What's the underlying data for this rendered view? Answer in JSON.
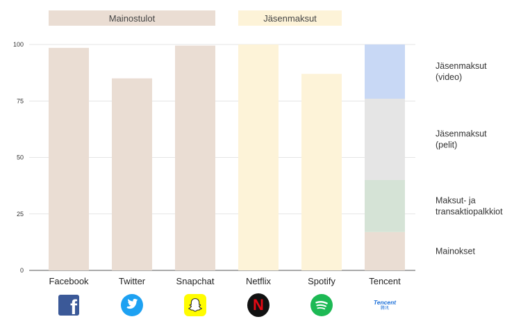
{
  "chart_data": {
    "type": "bar",
    "ylim": [
      0,
      100
    ],
    "yticks": [
      "0",
      "25",
      "50",
      "75",
      "100"
    ],
    "groups": [
      {
        "label": "Mainostulot",
        "categories": [
          "Facebook",
          "Twitter",
          "Snapchat"
        ],
        "color": "#eaddd3"
      },
      {
        "label": "Jäsenmaksut",
        "categories": [
          "Netflix",
          "Spotify"
        ],
        "color": "#fdf3d8"
      }
    ],
    "categories": [
      "Facebook",
      "Twitter",
      "Snapchat",
      "Netflix",
      "Spotify",
      "Tencent"
    ],
    "simple_bars": [
      {
        "category": "Facebook",
        "value": 98.5,
        "color": "#eaddd3"
      },
      {
        "category": "Twitter",
        "value": 85,
        "color": "#eaddd3"
      },
      {
        "category": "Snapchat",
        "value": 99.5,
        "color": "#eaddd3"
      },
      {
        "category": "Netflix",
        "value": 100,
        "color": "#fdf3d8"
      },
      {
        "category": "Spotify",
        "value": 87,
        "color": "#fdf3d8"
      }
    ],
    "stacked_bar": {
      "category": "Tencent",
      "segments": [
        {
          "name": "Mainokset",
          "lines": [
            "Mainokset"
          ],
          "value": 17,
          "color": "#eaddd3"
        },
        {
          "name": "Maksut- ja transaktiopalkkiot",
          "lines": [
            "Maksut- ja",
            "transaktiopalkkiot"
          ],
          "value": 23,
          "color": "#d5e3d6"
        },
        {
          "name": "Jäsenmaksut (pelit)",
          "lines": [
            "Jäsenmaksut",
            "(pelit)"
          ],
          "value": 36,
          "color": "#e5e5e5"
        },
        {
          "name": "Jäsenmaksut (video)",
          "lines": [
            "Jäsenmaksut",
            "(video)"
          ],
          "value": 24,
          "color": "#c8d8f5"
        }
      ]
    },
    "logos": [
      {
        "category": "Facebook",
        "icon": "facebook-icon",
        "glyph": "f",
        "color": "#3b5998"
      },
      {
        "category": "Twitter",
        "icon": "twitter-icon",
        "color": "#1da1f2"
      },
      {
        "category": "Snapchat",
        "icon": "snapchat-icon",
        "color": "#fffc00"
      },
      {
        "category": "Netflix",
        "icon": "netflix-icon",
        "glyph": "N",
        "color": "#e50914"
      },
      {
        "category": "Spotify",
        "icon": "spotify-icon",
        "color": "#1db954"
      },
      {
        "category": "Tencent",
        "icon": "tencent-icon",
        "text": "Tencent",
        "subtext": "腾讯",
        "color": "#1a6ed8"
      }
    ],
    "grid": true
  }
}
